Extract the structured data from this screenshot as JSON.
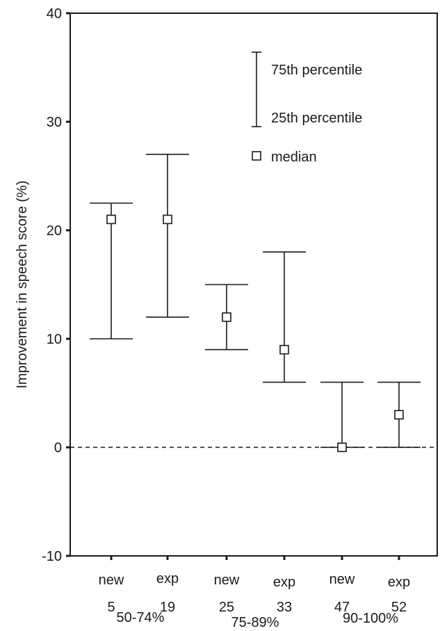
{
  "chart_data": {
    "type": "box",
    "ylabel": "Improvement in speech score (%)",
    "xlabel": "",
    "ylim": [
      -10,
      40
    ],
    "yticks": [
      -10,
      0,
      10,
      20,
      30,
      40
    ],
    "reference_line": {
      "y": 0,
      "style": "dashed"
    },
    "legend": {
      "placement": "top-right",
      "items": [
        "75th percentile",
        "25th percentile",
        "median"
      ]
    },
    "groups": [
      "50-74%",
      "75-89%",
      "90-100%"
    ],
    "categories": [
      {
        "label": "new",
        "n": "5",
        "group": "50-74%",
        "p25": 10,
        "median": 21,
        "p75": 22.5
      },
      {
        "label": "exp",
        "n": "19",
        "group": "50-74%",
        "p25": 12,
        "median": 21,
        "p75": 27
      },
      {
        "label": "new",
        "n": "25",
        "group": "75-89%",
        "p25": 9,
        "median": 12,
        "p75": 15
      },
      {
        "label": "exp",
        "n": "33",
        "group": "75-89%",
        "p25": 6,
        "median": 9,
        "p75": 18
      },
      {
        "label": "new",
        "n": "47",
        "group": "90-100%",
        "p25": 0,
        "median": 0,
        "p75": 6
      },
      {
        "label": "exp",
        "n": "52",
        "group": "90-100%",
        "p25": 0,
        "median": 3,
        "p75": 6
      }
    ]
  }
}
